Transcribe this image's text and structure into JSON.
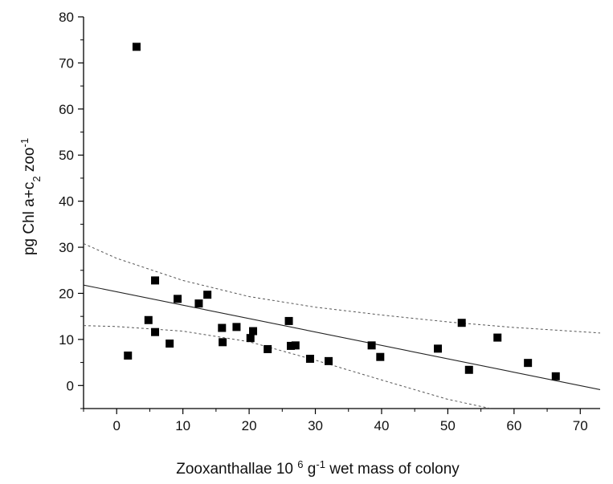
{
  "chart_data": {
    "type": "scatter",
    "xlabel": {
      "parts": [
        {
          "text": "Zooxanthallae 10 ",
          "shift": "none"
        },
        {
          "text": "6",
          "shift": "super"
        },
        {
          "text": " g",
          "shift": "none"
        },
        {
          "text": "-1",
          "shift": "super"
        },
        {
          "text": "  wet mass of colony",
          "shift": "none"
        }
      ]
    },
    "ylabel": {
      "parts": [
        {
          "text": "pg Chl a+c",
          "shift": "none"
        },
        {
          "text": "2",
          "shift": "sub"
        },
        {
          "text": "  zoo",
          "shift": "none"
        },
        {
          "text": "-1",
          "shift": "super"
        }
      ]
    },
    "xlim": [
      -5,
      73
    ],
    "ylim": [
      -5,
      80
    ],
    "xticks": [
      0,
      10,
      20,
      30,
      40,
      50,
      60,
      70
    ],
    "yticks": [
      0,
      10,
      20,
      30,
      40,
      50,
      60,
      70,
      80
    ],
    "grid": false,
    "marker": "square",
    "points": [
      {
        "x": 3.0,
        "y": 73.5
      },
      {
        "x": 1.7,
        "y": 6.5
      },
      {
        "x": 4.8,
        "y": 14.2
      },
      {
        "x": 5.8,
        "y": 22.8
      },
      {
        "x": 5.8,
        "y": 11.6
      },
      {
        "x": 8.0,
        "y": 9.1
      },
      {
        "x": 9.2,
        "y": 18.8
      },
      {
        "x": 12.4,
        "y": 17.8
      },
      {
        "x": 13.7,
        "y": 19.7
      },
      {
        "x": 15.9,
        "y": 12.5
      },
      {
        "x": 16.0,
        "y": 9.4
      },
      {
        "x": 18.1,
        "y": 12.7
      },
      {
        "x": 20.2,
        "y": 10.3
      },
      {
        "x": 20.6,
        "y": 11.8
      },
      {
        "x": 22.8,
        "y": 7.9
      },
      {
        "x": 26.0,
        "y": 14.0
      },
      {
        "x": 26.3,
        "y": 8.6
      },
      {
        "x": 27.0,
        "y": 8.7
      },
      {
        "x": 29.2,
        "y": 5.8
      },
      {
        "x": 32.0,
        "y": 5.3
      },
      {
        "x": 38.5,
        "y": 8.7
      },
      {
        "x": 39.8,
        "y": 6.2
      },
      {
        "x": 48.5,
        "y": 8.0
      },
      {
        "x": 52.1,
        "y": 13.6
      },
      {
        "x": 53.2,
        "y": 3.4
      },
      {
        "x": 57.5,
        "y": 10.4
      },
      {
        "x": 62.1,
        "y": 4.9
      },
      {
        "x": 66.3,
        "y": 2.0
      }
    ],
    "fit_line": {
      "style": "solid",
      "x": [
        -5,
        73
      ],
      "y": [
        21.8,
        -0.9
      ]
    },
    "confidence_bands": [
      {
        "style": "dashed",
        "x": [
          -5,
          0,
          10,
          20,
          30,
          40,
          50,
          60,
          73
        ],
        "y": [
          30.8,
          27.6,
          22.8,
          19.3,
          17.0,
          15.3,
          13.8,
          12.6,
          11.4
        ]
      },
      {
        "style": "dashed",
        "x": [
          -5,
          0,
          10,
          20,
          30,
          40,
          50,
          56.5
        ],
        "y": [
          13.0,
          12.8,
          11.8,
          9.5,
          5.5,
          1.2,
          -3.0,
          -5.0
        ]
      }
    ]
  }
}
